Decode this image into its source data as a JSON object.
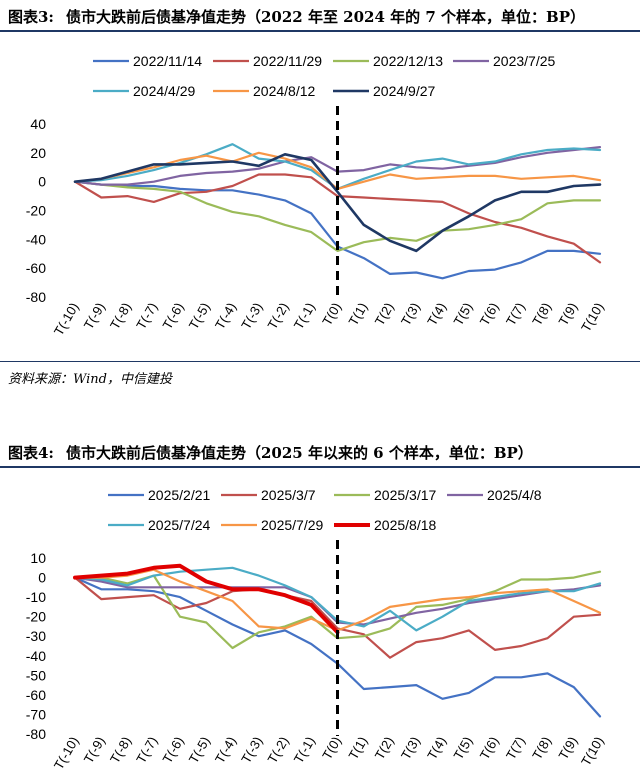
{
  "figure1": {
    "label": "图表3:",
    "title": "债市大跌前后债基净值走势（2022 年至 2024 年的 7 个样本，单位：BP）",
    "source": "资料来源：Wind，中信建投"
  },
  "figure2": {
    "label": "图表4:",
    "title": "债市大跌前后债基净值走势（2025 年以来的 6 个样本，单位：BP）"
  },
  "chart_data": [
    {
      "type": "line",
      "x": [
        "T(-10)",
        "T(-9)",
        "T(-8)",
        "T(-7)",
        "T(-6)",
        "T(-5)",
        "T(-4)",
        "T(-3)",
        "T(-2)",
        "T(-1)",
        "T(0)",
        "T(1)",
        "T(2)",
        "T(3)",
        "T(4)",
        "T(5)",
        "T(6)",
        "T(7)",
        "T(8)",
        "T(9)",
        "T(10)"
      ],
      "ylim": [
        -80,
        40
      ],
      "yticks": [
        40,
        20,
        0,
        -20,
        -40,
        -60,
        -80
      ],
      "vline_at": "T(0)",
      "legend_position": "top",
      "series": [
        {
          "name": "2022/11/14",
          "color": "#4472c4",
          "width": 2.2,
          "values": [
            0,
            -2,
            -3,
            -3,
            -5,
            -6,
            -6,
            -9,
            -13,
            -22,
            -45,
            -53,
            -64,
            -63,
            -67,
            -62,
            -61,
            -56,
            -48,
            -48,
            -50
          ]
        },
        {
          "name": "2022/11/29",
          "color": "#c0504d",
          "width": 2.2,
          "values": [
            0,
            -11,
            -10,
            -14,
            -8,
            -7,
            -3,
            5,
            5,
            3,
            -10,
            -11,
            -12,
            -13,
            -14,
            -22,
            -28,
            -32,
            -38,
            -43,
            -56
          ]
        },
        {
          "name": "2022/12/13",
          "color": "#9bbb59",
          "width": 2.2,
          "values": [
            0,
            -2,
            -4,
            -5,
            -7,
            -15,
            -21,
            -24,
            -30,
            -35,
            -48,
            -42,
            -39,
            -41,
            -34,
            -33,
            -30,
            -26,
            -15,
            -13,
            -13
          ]
        },
        {
          "name": "2023/7/25",
          "color": "#8064a2",
          "width": 2.2,
          "values": [
            0,
            -2,
            -2,
            0,
            4,
            6,
            7,
            9,
            14,
            17,
            7,
            8,
            12,
            10,
            9,
            11,
            13,
            17,
            20,
            22,
            24
          ]
        },
        {
          "name": "2024/4/29",
          "color": "#4bacc6",
          "width": 2.2,
          "values": [
            0,
            1,
            4,
            8,
            13,
            19,
            26,
            16,
            14,
            8,
            -5,
            2,
            8,
            14,
            16,
            12,
            14,
            19,
            22,
            23,
            22
          ]
        },
        {
          "name": "2024/8/12",
          "color": "#f79646",
          "width": 2.2,
          "values": [
            0,
            2,
            6,
            10,
            15,
            18,
            14,
            20,
            16,
            10,
            -5,
            0,
            5,
            2,
            3,
            4,
            4,
            2,
            3,
            4,
            1
          ]
        },
        {
          "name": "2024/9/27",
          "color": "#1f3864",
          "width": 2.6,
          "values": [
            0,
            2,
            7,
            12,
            12,
            13,
            14,
            11,
            19,
            15,
            -7,
            -30,
            -41,
            -48,
            -34,
            -24,
            -13,
            -7,
            -7,
            -3,
            -2
          ]
        }
      ]
    },
    {
      "type": "line",
      "x": [
        "T(-10)",
        "T(-9)",
        "T(-8)",
        "T(-7)",
        "T(-6)",
        "T(-5)",
        "T(-4)",
        "T(-3)",
        "T(-2)",
        "T(-1)",
        "T(0)",
        "T(1)",
        "T(2)",
        "T(3)",
        "T(4)",
        "T(5)",
        "T(6)",
        "T(7)",
        "T(8)",
        "T(9)",
        "T(10)"
      ],
      "ylim": [
        -80,
        10
      ],
      "yticks": [
        10,
        0,
        -10,
        -20,
        -30,
        -40,
        -50,
        -60,
        -70,
        -80
      ],
      "vline_at": "T(0)",
      "legend_position": "top",
      "series": [
        {
          "name": "2025/2/21",
          "color": "#4472c4",
          "width": 2.2,
          "values": [
            0,
            -6,
            -6,
            -7,
            -10,
            -17,
            -24,
            -30,
            -27,
            -34,
            -44,
            -57,
            -56,
            -55,
            -62,
            -59,
            -51,
            -51,
            -49,
            -56,
            -71
          ]
        },
        {
          "name": "2025/3/7",
          "color": "#c0504d",
          "width": 2.2,
          "values": [
            0,
            -11,
            -10,
            -9,
            -16,
            -13,
            -7,
            -6,
            -9,
            -12,
            -26,
            -29,
            -41,
            -33,
            -31,
            -27,
            -37,
            -35,
            -31,
            -20,
            -19
          ]
        },
        {
          "name": "2025/3/17",
          "color": "#9bbb59",
          "width": 2.2,
          "values": [
            0,
            0,
            -3,
            1,
            -20,
            -23,
            -36,
            -28,
            -25,
            -20,
            -31,
            -30,
            -26,
            -15,
            -14,
            -11,
            -7,
            -1,
            -1,
            0,
            3
          ]
        },
        {
          "name": "2025/4/8",
          "color": "#8064a2",
          "width": 2.2,
          "values": [
            0,
            -2,
            -5,
            -5,
            -5,
            -5,
            -5,
            -5,
            -5,
            -10,
            -23,
            -24,
            -21,
            -18,
            -16,
            -13,
            -11,
            -9,
            -7,
            -6,
            -4
          ]
        },
        {
          "name": "2025/7/24",
          "color": "#4bacc6",
          "width": 2.2,
          "values": [
            0,
            -1,
            -4,
            1,
            3,
            4,
            5,
            1,
            -4,
            -10,
            -22,
            -25,
            -17,
            -27,
            -20,
            -12,
            -10,
            -8,
            -7,
            -7,
            -3
          ]
        },
        {
          "name": "2025/7/29",
          "color": "#f79646",
          "width": 2.2,
          "values": [
            0,
            0,
            1,
            4,
            -2,
            -7,
            -12,
            -25,
            -26,
            -21,
            -27,
            -22,
            -15,
            -13,
            -11,
            -10,
            -8,
            -7,
            -6,
            -12,
            -18
          ]
        },
        {
          "name": "2025/8/18",
          "color": "#e00000",
          "width": 4,
          "values": [
            0,
            1,
            2,
            5,
            6,
            -2,
            -6,
            -6,
            -9,
            -14,
            -28,
            null,
            null,
            null,
            null,
            null,
            null,
            null,
            null,
            null,
            null
          ]
        }
      ]
    }
  ]
}
